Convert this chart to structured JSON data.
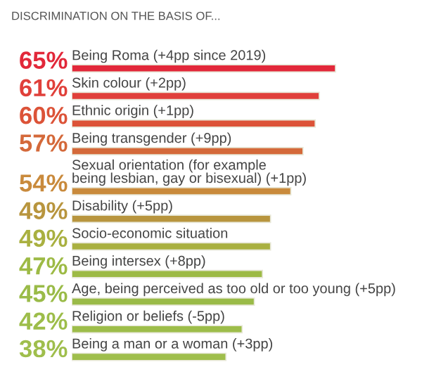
{
  "chart_data": {
    "type": "bar",
    "orientation": "horizontal",
    "title": "DISCRIMINATION ON THE BASIS OF...",
    "categories": [
      "Being Roma (+4pp since 2019)",
      "Skin colour (+2pp)",
      "Ethnic origin (+1pp)",
      "Being transgender (+9pp)",
      "Sexual orientation (for example\nbeing lesbian, gay or bisexual) (+1pp)",
      "Disability (+5pp)",
      "Socio-economic situation",
      "Being intersex (+8pp)",
      "Age, being perceived as too old or too young (+5pp)",
      "Religion or beliefs (-5pp)",
      "Being a man or a woman (+3pp)"
    ],
    "values": [
      65,
      61,
      60,
      57,
      54,
      49,
      49,
      47,
      45,
      42,
      38
    ],
    "colors": [
      "#e2283a",
      "#e0403a",
      "#dc5338",
      "#d4693a",
      "#c98a3c",
      "#b8953e",
      "#a9b040",
      "#9dba45",
      "#9abb48",
      "#9dbd4a",
      "#9fbe4c"
    ],
    "value_labels": [
      "65%",
      "61%",
      "60%",
      "57%",
      "54%",
      "49%",
      "49%",
      "47%",
      "45%",
      "42%",
      "38%"
    ],
    "legend": false
  }
}
